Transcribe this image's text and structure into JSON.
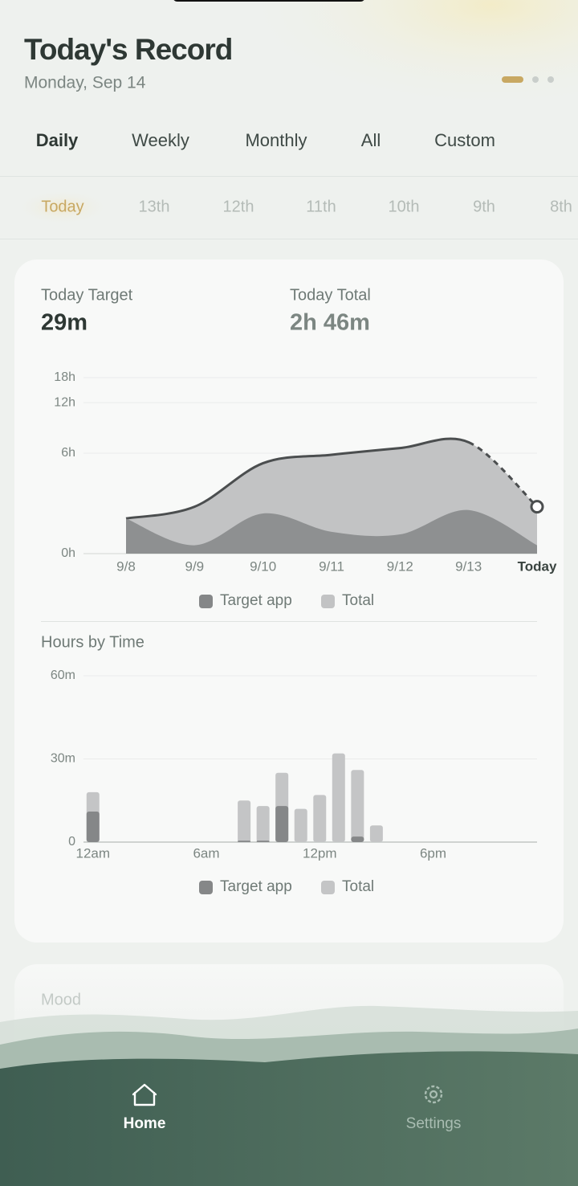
{
  "header": {
    "title": "Today's Record",
    "date": "Monday, Sep 14"
  },
  "tabs": {
    "items": [
      "Daily",
      "Weekly",
      "Monthly",
      "All",
      "Custom"
    ],
    "active": 0
  },
  "days": {
    "items": [
      "Today",
      "13th",
      "12th",
      "11th",
      "10th",
      "9th",
      "8th"
    ],
    "active": 0
  },
  "summary": {
    "target_label": "Today Target",
    "target_value": "29m",
    "total_label": "Today Total",
    "total_value": "2h 46m"
  },
  "chart_data": [
    {
      "type": "area",
      "categories": [
        "9/8",
        "9/9",
        "9/10",
        "9/11",
        "9/12",
        "9/13",
        "Today"
      ],
      "series": [
        {
          "name": "Target app",
          "color": "#858788",
          "values": [
            2.1,
            0.5,
            2.4,
            1.3,
            1.15,
            2.6,
            0.5
          ]
        },
        {
          "name": "Total",
          "color": "#c2c3c4",
          "line_color": "#4b4e4f",
          "values": [
            2.1,
            2.8,
            5.4,
            5.9,
            6.6,
            7.3,
            2.8
          ]
        }
      ],
      "ylim": [
        0,
        18
      ],
      "yticks": [
        {
          "value": 0,
          "label": "0h"
        },
        {
          "value": 6,
          "label": "6h"
        },
        {
          "value": 12,
          "label": "12h"
        },
        {
          "value": 18,
          "label": "18h"
        }
      ],
      "grid": true
    },
    {
      "type": "bar",
      "title": "Hours by Time",
      "x": [
        0,
        8,
        9,
        10,
        11,
        12,
        13,
        14,
        15
      ],
      "xlim": [
        -0.5,
        23.5
      ],
      "xticks": [
        {
          "value": 0,
          "label": "12am"
        },
        {
          "value": 6,
          "label": "6am"
        },
        {
          "value": 12,
          "label": "12pm"
        },
        {
          "value": 18,
          "label": "6pm"
        }
      ],
      "series": [
        {
          "name": "Target app",
          "color": "#858788",
          "values": [
            11,
            0.5,
            0.5,
            13,
            0,
            0,
            0,
            2,
            0
          ]
        },
        {
          "name": "Total",
          "color": "#c4c5c6",
          "values": [
            18,
            15,
            13,
            25,
            12,
            17,
            32,
            26,
            6
          ]
        }
      ],
      "ylim": [
        0,
        60
      ],
      "yticks": [
        0,
        {
          "value": 30,
          "label": "30m"
        },
        {
          "value": 60,
          "label": "60m"
        }
      ],
      "grid": true
    }
  ],
  "mood": {
    "title": "Mood"
  },
  "nav": {
    "items": [
      "Home",
      "Settings"
    ],
    "active": 0
  }
}
